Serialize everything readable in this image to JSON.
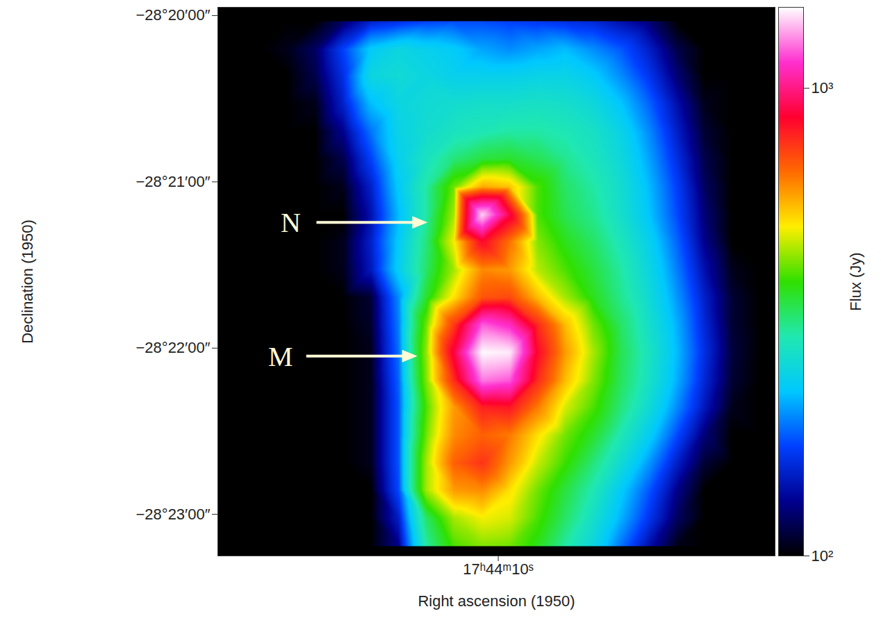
{
  "chart_data": {
    "type": "heatmap",
    "x_label": "Right ascension (1950)",
    "y_label": "Declination (1950)",
    "xlim": [
      63857.7,
      63842.4
    ],
    "ylim": [
      -28.3875,
      -28.3325
    ],
    "xticks": [
      {
        "value": 63850,
        "label": "17ʰ44ᵐ10ˢ"
      }
    ],
    "yticks": [
      {
        "value": -28.33333,
        "label": "−28°20′00″"
      },
      {
        "value": -28.35,
        "label": "−28°21′00″"
      },
      {
        "value": -28.36667,
        "label": "−28°22′00″"
      },
      {
        "value": -28.38333,
        "label": "−28°23′00″"
      }
    ],
    "x": [
      63857.31,
      63856.55,
      63855.78,
      63855.02,
      63854.26,
      63853.5,
      63852.73,
      63851.97,
      63851.21,
      63850.44,
      63849.68,
      63848.92,
      63848.16,
      63847.39,
      63846.63,
      63845.87,
      63845.1,
      63844.34,
      63843.58,
      63842.82
    ],
    "y": [
      -28.3339,
      -28.3367,
      -28.3394,
      -28.3422,
      -28.345,
      -28.3477,
      -28.3505,
      -28.3533,
      -28.356,
      -28.3588,
      -28.3616,
      -28.3643,
      -28.3671,
      -28.3699,
      -28.3726,
      -28.3754,
      -28.3782,
      -28.3809,
      -28.3837,
      -28.3865
    ],
    "cells": [
      [
        100,
        100,
        100,
        100,
        120,
        150,
        160,
        170,
        175,
        175,
        170,
        165,
        160,
        155,
        140,
        125,
        100,
        100,
        100,
        100
      ],
      [
        100,
        100,
        105,
        120,
        170,
        230,
        250,
        240,
        230,
        210,
        200,
        210,
        220,
        200,
        180,
        150,
        115,
        100,
        100,
        100
      ],
      [
        100,
        100,
        100,
        115,
        160,
        250,
        260,
        250,
        240,
        240,
        240,
        245,
        245,
        230,
        200,
        165,
        125,
        100,
        100,
        100
      ],
      [
        100,
        100,
        100,
        105,
        150,
        220,
        250,
        260,
        265,
        270,
        270,
        275,
        270,
        255,
        225,
        185,
        140,
        105,
        100,
        100
      ],
      [
        100,
        100,
        100,
        100,
        130,
        190,
        245,
        265,
        280,
        290,
        300,
        300,
        290,
        275,
        245,
        200,
        150,
        110,
        100,
        100
      ],
      [
        100,
        100,
        100,
        100,
        115,
        170,
        240,
        280,
        320,
        350,
        360,
        340,
        310,
        285,
        255,
        210,
        160,
        115,
        100,
        100
      ],
      [
        100,
        100,
        100,
        100,
        105,
        150,
        230,
        300,
        420,
        580,
        550,
        400,
        330,
        300,
        265,
        220,
        170,
        120,
        100,
        100
      ],
      [
        100,
        100,
        100,
        100,
        100,
        140,
        220,
        300,
        450,
        1400,
        900,
        400,
        340,
        310,
        270,
        225,
        175,
        125,
        100,
        100
      ],
      [
        100,
        100,
        100,
        100,
        105,
        150,
        230,
        320,
        500,
        850,
        650,
        430,
        370,
        330,
        285,
        240,
        185,
        130,
        100,
        100
      ],
      [
        100,
        100,
        100,
        100,
        105,
        145,
        235,
        330,
        450,
        620,
        600,
        460,
        400,
        350,
        300,
        250,
        195,
        140,
        105,
        100
      ],
      [
        100,
        100,
        100,
        100,
        100,
        110,
        200,
        360,
        520,
        700,
        720,
        560,
        450,
        370,
        310,
        260,
        205,
        150,
        110,
        100
      ],
      [
        100,
        100,
        100,
        100,
        100,
        108,
        195,
        420,
        750,
        1200,
        1100,
        780,
        560,
        420,
        330,
        270,
        215,
        155,
        110,
        100
      ],
      [
        100,
        100,
        100,
        100,
        100,
        105,
        190,
        440,
        900,
        1480,
        1450,
        850,
        600,
        450,
        340,
        280,
        220,
        160,
        112,
        100
      ],
      [
        100,
        100,
        100,
        100,
        100,
        105,
        185,
        430,
        780,
        1250,
        1200,
        780,
        560,
        430,
        335,
        275,
        215,
        155,
        110,
        100
      ],
      [
        100,
        100,
        100,
        100,
        100,
        105,
        180,
        400,
        600,
        800,
        820,
        640,
        480,
        400,
        320,
        260,
        200,
        145,
        105,
        100
      ],
      [
        100,
        100,
        100,
        100,
        100,
        105,
        180,
        420,
        620,
        680,
        640,
        520,
        420,
        360,
        290,
        235,
        175,
        125,
        100,
        100
      ],
      [
        100,
        100,
        100,
        100,
        100,
        105,
        180,
        450,
        680,
        760,
        600,
        470,
        390,
        320,
        260,
        205,
        150,
        110,
        100,
        100
      ],
      [
        100,
        100,
        100,
        100,
        100,
        100,
        175,
        450,
        600,
        620,
        520,
        420,
        350,
        290,
        230,
        180,
        130,
        100,
        100,
        100
      ],
      [
        100,
        100,
        100,
        100,
        100,
        100,
        150,
        330,
        450,
        500,
        480,
        400,
        330,
        270,
        215,
        165,
        120,
        100,
        100,
        100
      ],
      [
        100,
        100,
        100,
        100,
        100,
        100,
        130,
        300,
        400,
        430,
        420,
        370,
        300,
        250,
        190,
        140,
        105,
        100,
        100,
        100
      ]
    ],
    "colorbar": {
      "label": "Flux (Jy)",
      "log": true,
      "range": [
        100,
        1490
      ],
      "ticks": [
        {
          "value": 100,
          "label": "10²"
        },
        {
          "value": 1000,
          "label": "10³"
        }
      ]
    },
    "annotations": [
      {
        "text": "N",
        "x": 63851.93,
        "y": -28.3541
      },
      {
        "text": "M",
        "x": 63852.21,
        "y": -28.3675
      }
    ]
  }
}
